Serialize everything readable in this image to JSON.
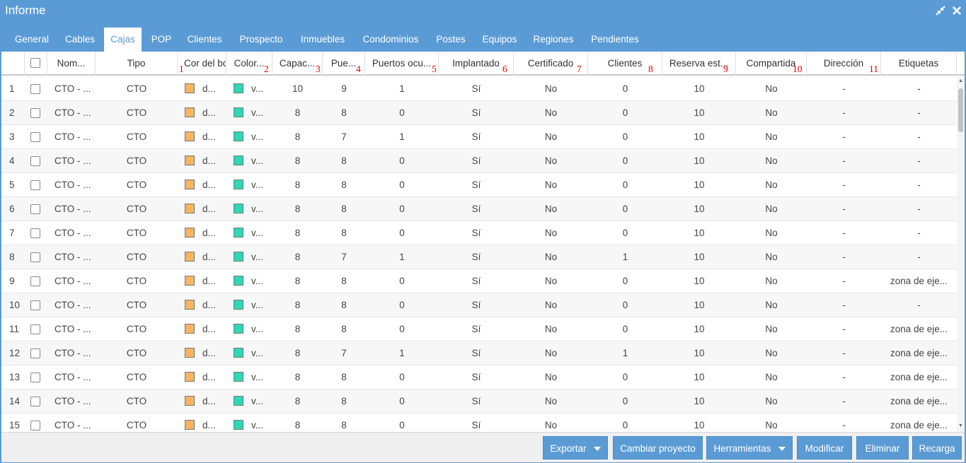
{
  "window": {
    "title": "Informe"
  },
  "tabs": [
    "General",
    "Cables",
    "Cajas",
    "POP",
    "Clientes",
    "Prospecto",
    "Inmuebles",
    "Condominios",
    "Postes",
    "Equipos",
    "Regiones",
    "Pendientes"
  ],
  "active_tab": "Cajas",
  "columns": [
    {
      "label": "Nom...",
      "num": ""
    },
    {
      "label": "Tipo",
      "num": ""
    },
    {
      "label": "Cor del bo",
      "num": "1"
    },
    {
      "label": "Color...",
      "num": "2"
    },
    {
      "label": "Capac...",
      "num": "3"
    },
    {
      "label": "Pue...",
      "num": "4"
    },
    {
      "label": "Puertos ocu...",
      "num": "5"
    },
    {
      "label": "Implantado",
      "num": "6"
    },
    {
      "label": "Certificado",
      "num": "7"
    },
    {
      "label": "Clientes",
      "num": "8"
    },
    {
      "label": "Reserva est...",
      "num": "9"
    },
    {
      "label": "Compartida",
      "num": "10"
    },
    {
      "label": "Dirección",
      "num": "11"
    },
    {
      "label": "Etiquetas",
      "num": ""
    }
  ],
  "colors": {
    "orange": "#f5b461",
    "teal": "#2ed8b4",
    "accent": "#5b9bd5"
  },
  "rows": [
    {
      "n": "1",
      "nombre": "CTO - ...",
      "tipo": "CTO",
      "c1": "d...",
      "c2": "v...",
      "capac": "10",
      "pue": "9",
      "ocu": "1",
      "impl": "Sí",
      "cert": "No",
      "cli": "0",
      "res": "10",
      "comp": "No",
      "dir": "-",
      "etq": "-"
    },
    {
      "n": "2",
      "nombre": "CTO - ...",
      "tipo": "CTO",
      "c1": "d...",
      "c2": "v...",
      "capac": "8",
      "pue": "8",
      "ocu": "0",
      "impl": "Sí",
      "cert": "No",
      "cli": "0",
      "res": "10",
      "comp": "No",
      "dir": "-",
      "etq": "-"
    },
    {
      "n": "3",
      "nombre": "CTO - ...",
      "tipo": "CTO",
      "c1": "d...",
      "c2": "v...",
      "capac": "8",
      "pue": "7",
      "ocu": "1",
      "impl": "Sí",
      "cert": "No",
      "cli": "0",
      "res": "10",
      "comp": "No",
      "dir": "-",
      "etq": "-"
    },
    {
      "n": "4",
      "nombre": "CTO - ...",
      "tipo": "CTO",
      "c1": "d...",
      "c2": "v...",
      "capac": "8",
      "pue": "8",
      "ocu": "0",
      "impl": "Sí",
      "cert": "No",
      "cli": "0",
      "res": "10",
      "comp": "No",
      "dir": "-",
      "etq": "-"
    },
    {
      "n": "5",
      "nombre": "CTO - ...",
      "tipo": "CTO",
      "c1": "d...",
      "c2": "v...",
      "capac": "8",
      "pue": "8",
      "ocu": "0",
      "impl": "Sí",
      "cert": "No",
      "cli": "0",
      "res": "10",
      "comp": "No",
      "dir": "-",
      "etq": "-"
    },
    {
      "n": "6",
      "nombre": "CTO - ...",
      "tipo": "CTO",
      "c1": "d...",
      "c2": "v...",
      "capac": "8",
      "pue": "8",
      "ocu": "0",
      "impl": "Sí",
      "cert": "No",
      "cli": "0",
      "res": "10",
      "comp": "No",
      "dir": "-",
      "etq": "-"
    },
    {
      "n": "7",
      "nombre": "CTO - ...",
      "tipo": "CTO",
      "c1": "d...",
      "c2": "v...",
      "capac": "8",
      "pue": "8",
      "ocu": "0",
      "impl": "Sí",
      "cert": "No",
      "cli": "0",
      "res": "10",
      "comp": "No",
      "dir": "-",
      "etq": "-"
    },
    {
      "n": "8",
      "nombre": "CTO - ...",
      "tipo": "CTO",
      "c1": "d...",
      "c2": "v...",
      "capac": "8",
      "pue": "7",
      "ocu": "1",
      "impl": "Sí",
      "cert": "No",
      "cli": "1",
      "res": "10",
      "comp": "No",
      "dir": "-",
      "etq": "-"
    },
    {
      "n": "9",
      "nombre": "CTO - ...",
      "tipo": "CTO",
      "c1": "d...",
      "c2": "v...",
      "capac": "8",
      "pue": "8",
      "ocu": "0",
      "impl": "Sí",
      "cert": "No",
      "cli": "0",
      "res": "10",
      "comp": "No",
      "dir": "-",
      "etq": "zona de eje..."
    },
    {
      "n": "10",
      "nombre": "CTO - ...",
      "tipo": "CTO",
      "c1": "d...",
      "c2": "v...",
      "capac": "8",
      "pue": "8",
      "ocu": "0",
      "impl": "Sí",
      "cert": "No",
      "cli": "0",
      "res": "10",
      "comp": "No",
      "dir": "-",
      "etq": "-"
    },
    {
      "n": "11",
      "nombre": "CTO - ...",
      "tipo": "CTO",
      "c1": "d...",
      "c2": "v...",
      "capac": "8",
      "pue": "8",
      "ocu": "0",
      "impl": "Sí",
      "cert": "No",
      "cli": "0",
      "res": "10",
      "comp": "No",
      "dir": "-",
      "etq": "zona de eje..."
    },
    {
      "n": "12",
      "nombre": "CTO - ...",
      "tipo": "CTO",
      "c1": "d...",
      "c2": "v...",
      "capac": "8",
      "pue": "7",
      "ocu": "1",
      "impl": "Sí",
      "cert": "No",
      "cli": "1",
      "res": "10",
      "comp": "No",
      "dir": "-",
      "etq": "zona de eje..."
    },
    {
      "n": "13",
      "nombre": "CTO - ...",
      "tipo": "CTO",
      "c1": "d...",
      "c2": "v...",
      "capac": "8",
      "pue": "8",
      "ocu": "0",
      "impl": "Sí",
      "cert": "No",
      "cli": "0",
      "res": "10",
      "comp": "No",
      "dir": "-",
      "etq": "zona de eje..."
    },
    {
      "n": "14",
      "nombre": "CTO - ...",
      "tipo": "CTO",
      "c1": "d...",
      "c2": "v...",
      "capac": "8",
      "pue": "8",
      "ocu": "0",
      "impl": "Sí",
      "cert": "No",
      "cli": "0",
      "res": "10",
      "comp": "No",
      "dir": "-",
      "etq": "zona de eje..."
    },
    {
      "n": "15",
      "nombre": "CTO - ...",
      "tipo": "CTO",
      "c1": "d...",
      "c2": "v...",
      "capac": "8",
      "pue": "8",
      "ocu": "0",
      "impl": "Sí",
      "cert": "No",
      "cli": "0",
      "res": "10",
      "comp": "No",
      "dir": "-",
      "etq": "zona de eje..."
    }
  ],
  "footer": {
    "exportar": "Exportar",
    "cambiar_proyecto": "Cambiar proyecto",
    "herramientas": "Herramientas",
    "modificar": "Modificar",
    "eliminar": "Eliminar",
    "recarga": "Recarga"
  },
  "icons": {
    "minimize": "compress-icon",
    "close": "close-icon"
  }
}
